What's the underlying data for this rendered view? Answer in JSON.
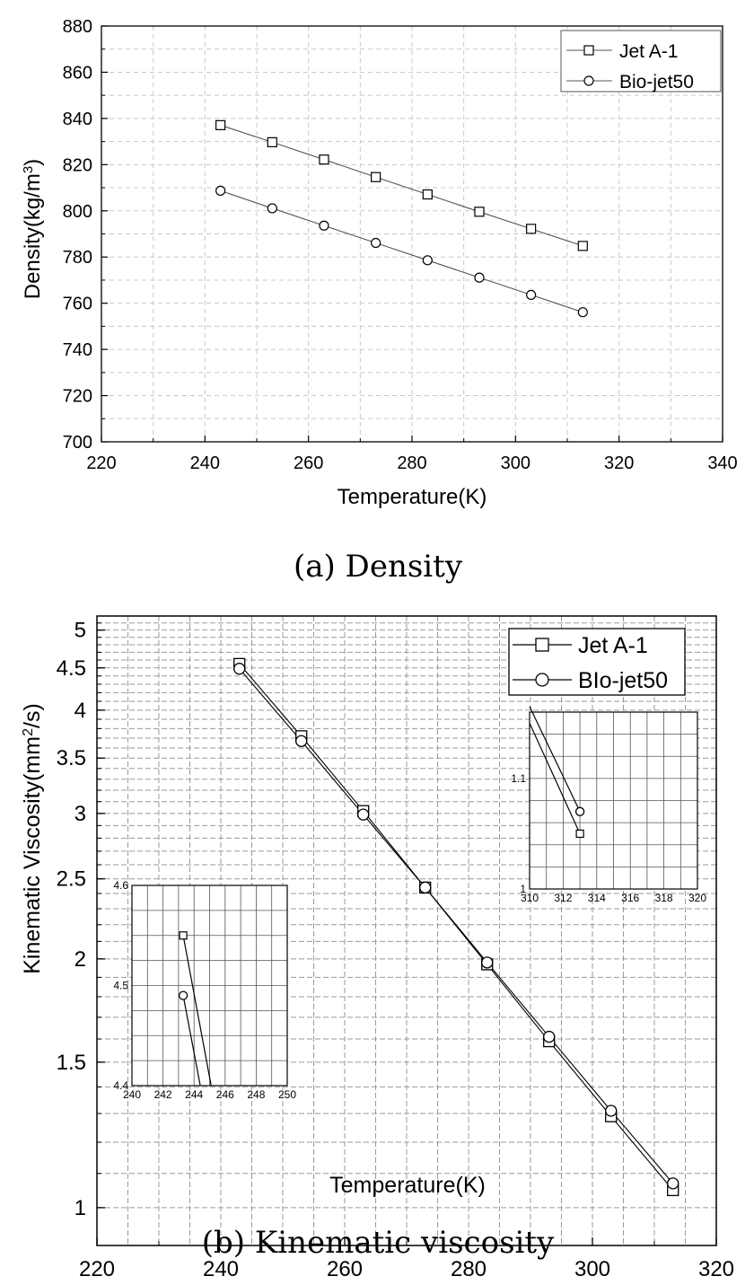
{
  "chart_data": [
    {
      "type": "line",
      "caption": "(a)  Density",
      "xlabel": "Temperature(K)",
      "ylabel_main": "Density(kg/m",
      "ylabel_sup": "3",
      "ylabel_end": ")",
      "xlim": [
        220,
        340
      ],
      "ylim": [
        700,
        880
      ],
      "xticks": [
        "220",
        "240",
        "260",
        "280",
        "300",
        "320",
        "340"
      ],
      "yticks": [
        "700",
        "720",
        "740",
        "760",
        "780",
        "800",
        "820",
        "840",
        "860",
        "880"
      ],
      "grid": true,
      "legend_position": "top-right",
      "x": [
        243,
        253,
        263,
        273,
        283,
        293,
        303,
        313
      ],
      "series": [
        {
          "name": "Jet A-1",
          "marker": "square",
          "values": [
            837.1,
            829.7,
            822.2,
            814.6,
            807.1,
            799.6,
            792.2,
            784.8
          ]
        },
        {
          "name": "Bio-jet50",
          "marker": "circle",
          "values": [
            808.7,
            801.1,
            793.6,
            786.1,
            778.6,
            771.1,
            763.6,
            756.1
          ]
        }
      ]
    },
    {
      "type": "line",
      "caption": "(b)  Kinematic  viscosity",
      "xlabel": "Temperature(K)",
      "ylabel_main": "Kinematic Viscosity(mm",
      "ylabel_sup": "2",
      "ylabel_end": "/s)",
      "y_scale": "log",
      "xlim": [
        220,
        320
      ],
      "ylim": [
        0.9,
        5.2
      ],
      "xticks": [
        "220",
        "240",
        "260",
        "280",
        "300",
        "320"
      ],
      "yticks": [
        "1",
        "1.5",
        "2",
        "2.5",
        "3",
        "3.5",
        "4",
        "4.5",
        "5"
      ],
      "grid": true,
      "legend_position": "top-right",
      "x": [
        243,
        253,
        263,
        273,
        283,
        293,
        303,
        313
      ],
      "series": [
        {
          "name": "Jet A-1",
          "marker": "square",
          "values": [
            4.55,
            3.72,
            3.02,
            2.44,
            1.97,
            1.59,
            1.29,
            1.05
          ]
        },
        {
          "name": "BIo-jet50",
          "marker": "circle",
          "values": [
            4.49,
            3.67,
            2.99,
            2.44,
            1.98,
            1.61,
            1.31,
            1.07
          ]
        }
      ],
      "insets": [
        {
          "position": "top-right",
          "xlim": [
            310,
            320
          ],
          "ylim": [
            1.0,
            1.16
          ],
          "xticks": [
            "310",
            "312",
            "314",
            "316",
            "318",
            "320"
          ],
          "yticks": [
            "1",
            "1.1"
          ],
          "jet_points": [
            [
              310,
              1.15
            ],
            [
              313,
              1.05
            ]
          ],
          "bio_points": [
            [
              310,
              1.165
            ],
            [
              313,
              1.07
            ]
          ]
        },
        {
          "position": "bottom-left",
          "xlim": [
            240,
            250
          ],
          "ylim": [
            4.4,
            4.6
          ],
          "xticks": [
            "240",
            "242",
            "244",
            "246",
            "248",
            "250"
          ],
          "yticks": [
            "4.4",
            "4.5",
            "4.6"
          ],
          "jet_points": [
            [
              243.3,
              4.55
            ],
            [
              245.1,
              4.4
            ]
          ],
          "bio_points": [
            [
              243.3,
              4.49
            ],
            [
              244.4,
              4.4
            ]
          ]
        }
      ]
    }
  ]
}
